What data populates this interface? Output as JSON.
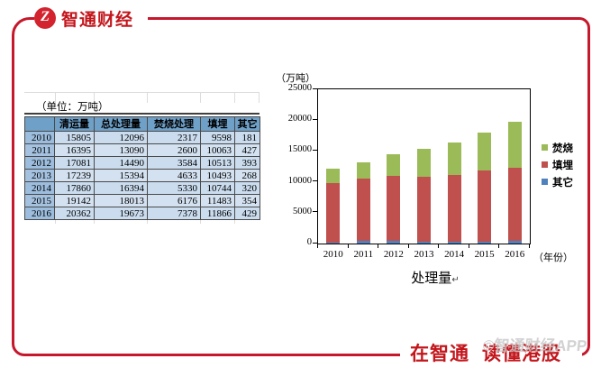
{
  "header": {
    "logo_glyph": "Z",
    "brand": "智通财经"
  },
  "unit_caption": "（单位：万吨）",
  "table": {
    "columns": [
      "",
      "清运量",
      "总处理量",
      "焚烧处理",
      "填埋",
      "其它"
    ],
    "rows": [
      [
        "2010",
        "15805",
        "12096",
        "2317",
        "9598",
        "181"
      ],
      [
        "2011",
        "16395",
        "13090",
        "2600",
        "10063",
        "427"
      ],
      [
        "2012",
        "17081",
        "14490",
        "3584",
        "10513",
        "393"
      ],
      [
        "2013",
        "17239",
        "15394",
        "4633",
        "10493",
        "268"
      ],
      [
        "2014",
        "17860",
        "16394",
        "5330",
        "10744",
        "320"
      ],
      [
        "2015",
        "19142",
        "18013",
        "6176",
        "11483",
        "354"
      ],
      [
        "2016",
        "20362",
        "19673",
        "7378",
        "11866",
        "429"
      ]
    ]
  },
  "chart_data": {
    "type": "bar",
    "stacked": true,
    "title": "处理量",
    "title_mark": "↵",
    "ylabel_unit": "（万吨）",
    "xlabel_unit": "（年份）",
    "categories": [
      "2010",
      "2011",
      "2012",
      "2013",
      "2014",
      "2015",
      "2016"
    ],
    "series": [
      {
        "name": "其它",
        "color": "#4f81bd",
        "values": [
          181,
          427,
          393,
          268,
          320,
          354,
          429
        ]
      },
      {
        "name": "填埋",
        "color": "#c0504d",
        "values": [
          9598,
          10063,
          10513,
          10493,
          10744,
          11483,
          11866
        ]
      },
      {
        "name": "焚烧",
        "color": "#9bbb59",
        "values": [
          2317,
          2600,
          3584,
          4633,
          5330,
          6176,
          7378
        ]
      }
    ],
    "legend_order_top_to_bottom": [
      "焚烧",
      "填埋",
      "其它"
    ],
    "legend_position": "right",
    "ylim": [
      0,
      25000
    ],
    "yticks": [
      0,
      5000,
      10000,
      15000,
      20000,
      25000
    ],
    "grid": false
  },
  "footer": {
    "slogan_part1": "在智通",
    "slogan_part2": "读懂港股",
    "watermark": "©智通财经APP"
  },
  "colors": {
    "frame_red": "#c5182c",
    "brand_red": "#c3161c",
    "table_header_bg": "#6fa0c8",
    "table_year_bg": "#9cbddd",
    "table_cell_bg": "#cadcee",
    "bar_green": "#9bbb59",
    "bar_red": "#c0504d",
    "bar_blue": "#4f81bd",
    "watermark_gray": "#c8c8c8"
  }
}
